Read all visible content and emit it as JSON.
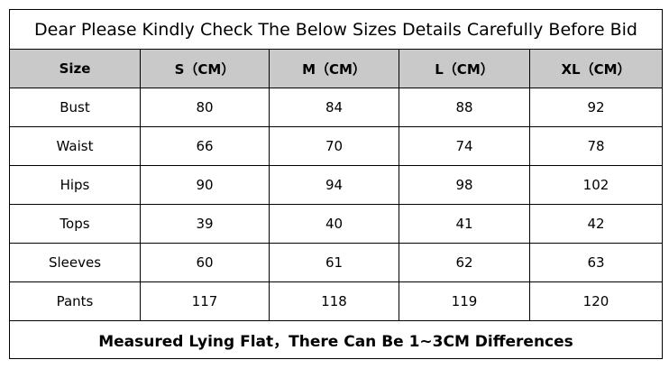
{
  "header": {
    "title": "Dear Please Kindly Check The Below Sizes Details Carefully Before Bid"
  },
  "table": {
    "columns": [
      "Size",
      "S（CM）",
      "M（CM）",
      "L（CM）",
      "XL（CM）"
    ],
    "rows": [
      [
        "Bust",
        80,
        84,
        88,
        92
      ],
      [
        "Waist",
        66,
        70,
        74,
        78
      ],
      [
        "Hips",
        90,
        94,
        98,
        102
      ],
      [
        "Tops",
        39,
        40,
        41,
        42
      ],
      [
        "Sleeves",
        60,
        61,
        62,
        63
      ],
      [
        "Pants",
        117,
        118,
        119,
        120
      ]
    ]
  },
  "footer": {
    "note": "Measured Lying Flat，There Can Be 1~3CM Differences"
  }
}
